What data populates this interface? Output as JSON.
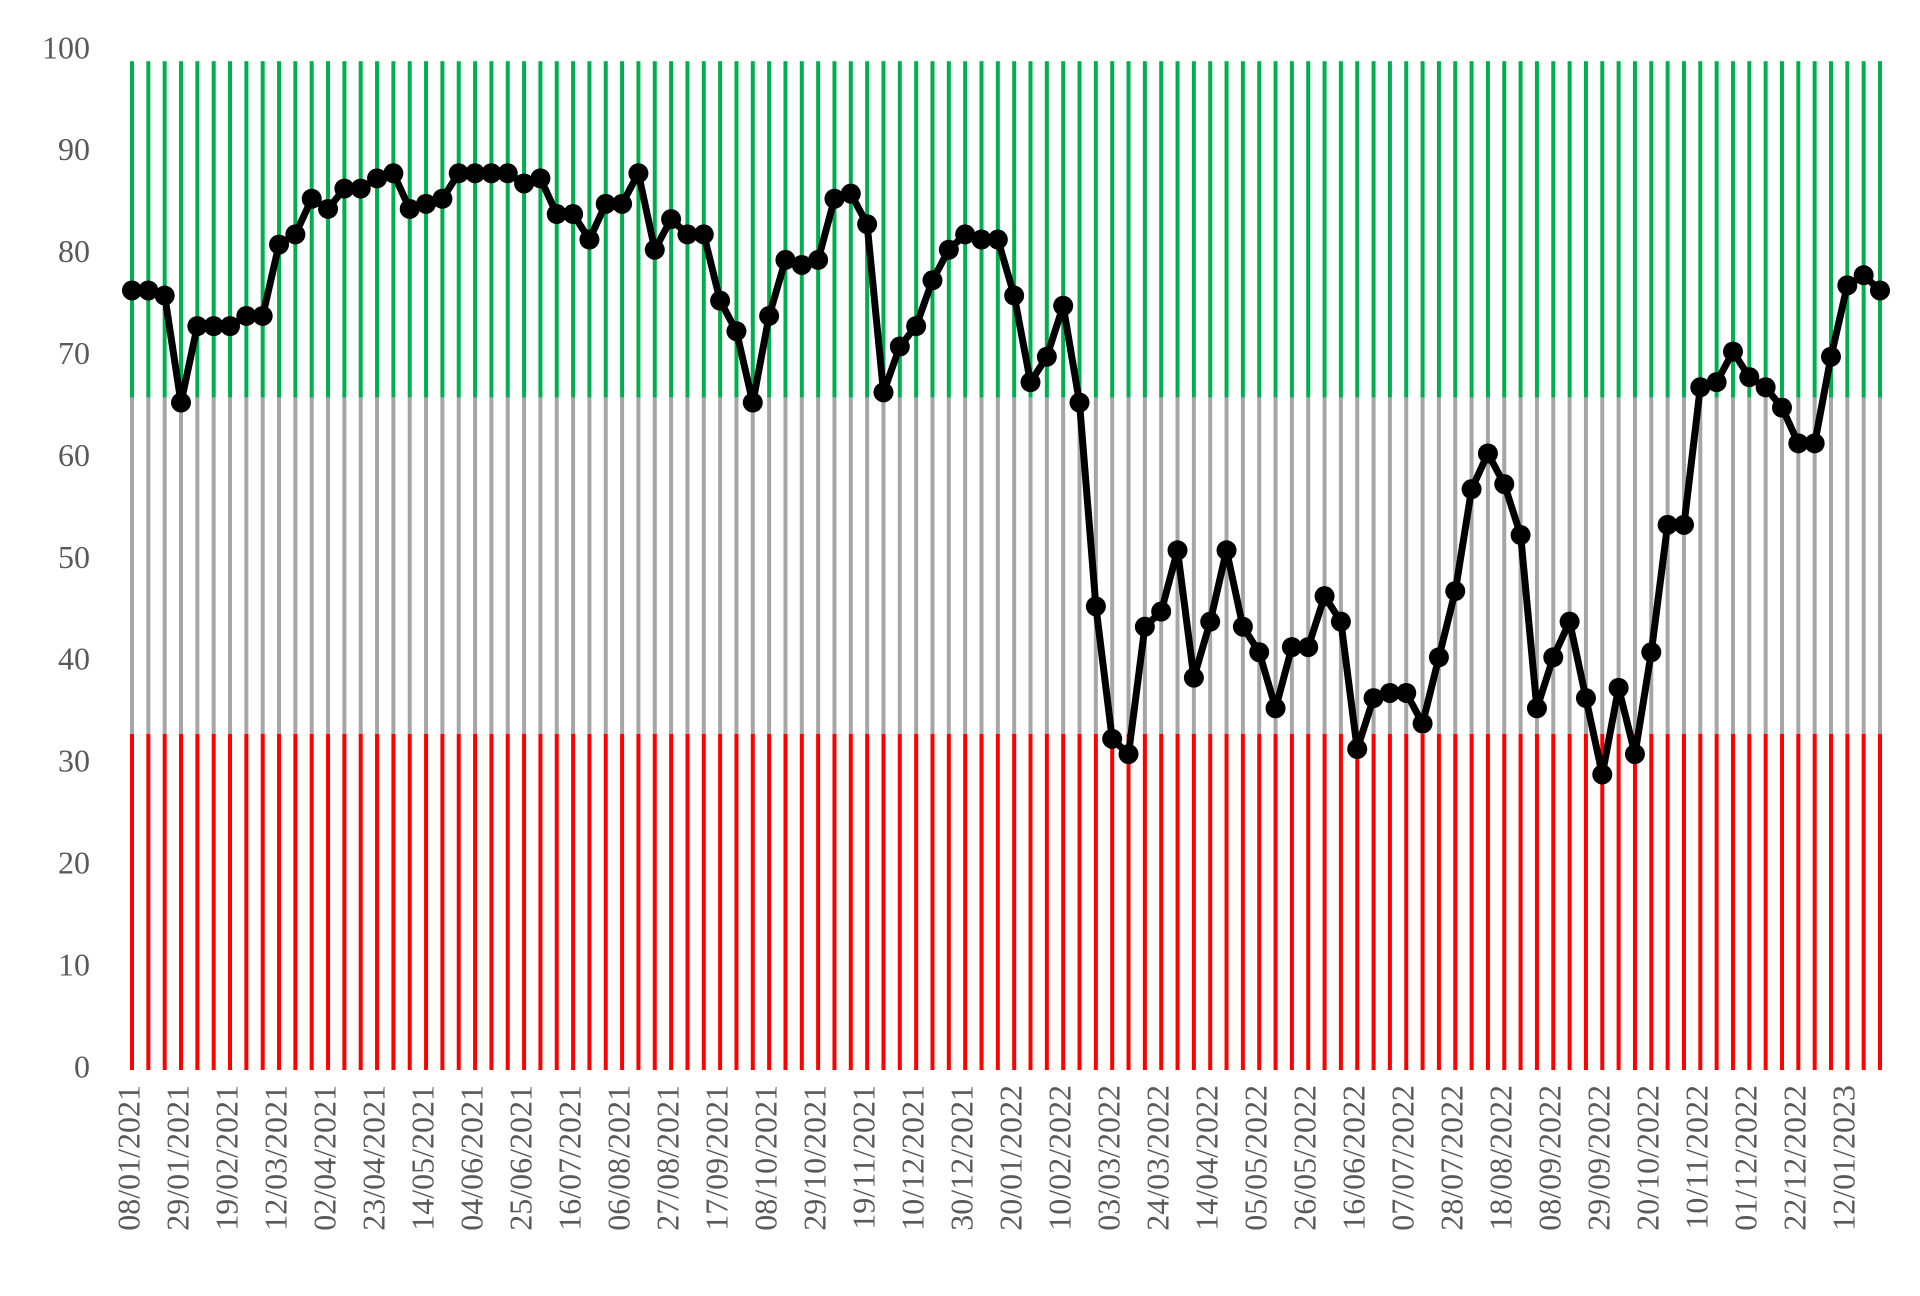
{
  "chart_data": {
    "type": "line",
    "categories": [
      "08/01/2021",
      null,
      null,
      "29/01/2021",
      null,
      null,
      "19/02/2021",
      null,
      null,
      "12/03/2021",
      null,
      null,
      "02/04/2021",
      null,
      null,
      "23/04/2021",
      null,
      null,
      "14/05/2021",
      null,
      null,
      "04/06/2021",
      null,
      null,
      "25/06/2021",
      null,
      null,
      "16/07/2021",
      null,
      null,
      "06/08/2021",
      null,
      null,
      "27/08/2021",
      null,
      null,
      "17/09/2021",
      null,
      null,
      "08/10/2021",
      null,
      null,
      "29/10/2021",
      null,
      null,
      "19/11/2021",
      null,
      null,
      "10/12/2021",
      null,
      null,
      "30/12/2021",
      null,
      null,
      "20/01/2022",
      null,
      null,
      "10/02/2022",
      null,
      null,
      "03/03/2022",
      null,
      null,
      "24/03/2022",
      null,
      null,
      "14/04/2022",
      null,
      null,
      "05/05/2022",
      null,
      null,
      "26/05/2022",
      null,
      null,
      "16/06/2022",
      null,
      null,
      "07/07/2022",
      null,
      null,
      "28/07/2022",
      null,
      null,
      "18/08/2022",
      null,
      null,
      "08/09/2022",
      null,
      null,
      "29/09/2022",
      null,
      null,
      "20/10/2022",
      null,
      null,
      "10/11/2022",
      null,
      null,
      "01/12/2022",
      null,
      null,
      "22/12/2022",
      null,
      null,
      "12/01/2023",
      null,
      null
    ],
    "values": [
      76.5,
      76.5,
      76,
      65.5,
      73,
      73,
      73,
      74,
      74,
      81,
      82,
      85.5,
      84.5,
      86.5,
      86.5,
      87.5,
      88,
      84.5,
      85,
      85.5,
      88,
      88,
      88,
      88,
      87,
      87.5,
      84,
      84,
      81.5,
      85,
      85,
      88,
      80.5,
      83.5,
      82,
      82,
      75.5,
      72.5,
      65.5,
      74,
      79.5,
      79,
      79.5,
      85.5,
      86,
      83,
      66.5,
      71,
      73,
      77.5,
      80.5,
      82,
      81.5,
      81.5,
      76,
      67.5,
      70,
      75,
      65.5,
      45.5,
      32.5,
      31,
      43.5,
      45,
      51,
      38.5,
      44,
      51,
      43.5,
      41,
      35.5,
      41.5,
      41.5,
      46.5,
      44,
      31.5,
      36.5,
      37,
      37,
      34,
      40.5,
      47,
      57,
      60.5,
      57.5,
      52.5,
      35.5,
      40.5,
      44,
      36.5,
      29,
      37.5,
      31,
      41,
      53.5,
      53.5,
      67,
      67.5,
      70.5,
      68,
      67,
      65,
      61.5,
      61.5,
      70,
      77,
      78,
      76.5
    ],
    "color": "#000000",
    "bands": [
      {
        "range": [
          0,
          33
        ],
        "color": "#ff0000"
      },
      {
        "range": [
          33,
          66
        ],
        "color": "#a6a6a6"
      },
      {
        "range": [
          66,
          99
        ],
        "color": "#00b050"
      }
    ],
    "ylim": [
      0,
      100
    ],
    "yticks": [
      0,
      10,
      20,
      30,
      40,
      50,
      60,
      70,
      80,
      90,
      100
    ]
  }
}
